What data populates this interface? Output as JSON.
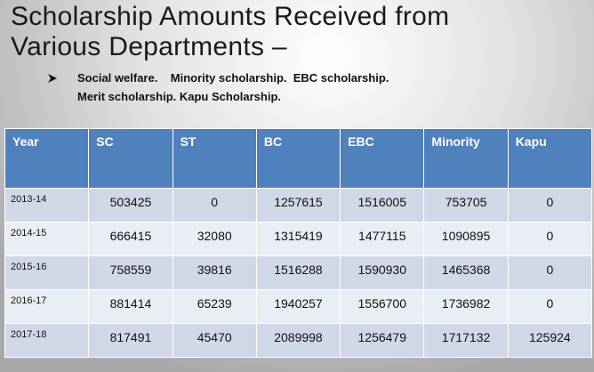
{
  "header": {
    "title_lines": [
      "Scholarship Amounts Received from",
      "Various Departments –"
    ]
  },
  "bullet": {
    "lines": [
      "Social welfare.    Minority scholarship.  EBC scholarship.",
      "Merit scholarship. Kapu Scholarship."
    ]
  },
  "table": {
    "columns": [
      "Year",
      "SC",
      "ST",
      "BC",
      "EBC",
      "Minority",
      "Kapu"
    ],
    "rows": [
      [
        "2013-14",
        503425,
        0,
        1257615,
        1516005,
        753705,
        0
      ],
      [
        "2014-15",
        666415,
        32080,
        1315419,
        1477115,
        1090895,
        0
      ],
      [
        "2015-16",
        758559,
        39816,
        1516288,
        1590930,
        1465368,
        0
      ],
      [
        "2016-17",
        881414,
        65239,
        1940257,
        1556700,
        1736982,
        0
      ],
      [
        "2017-18",
        817491,
        45470,
        2089998,
        1256479,
        1717132,
        125924
      ]
    ]
  }
}
